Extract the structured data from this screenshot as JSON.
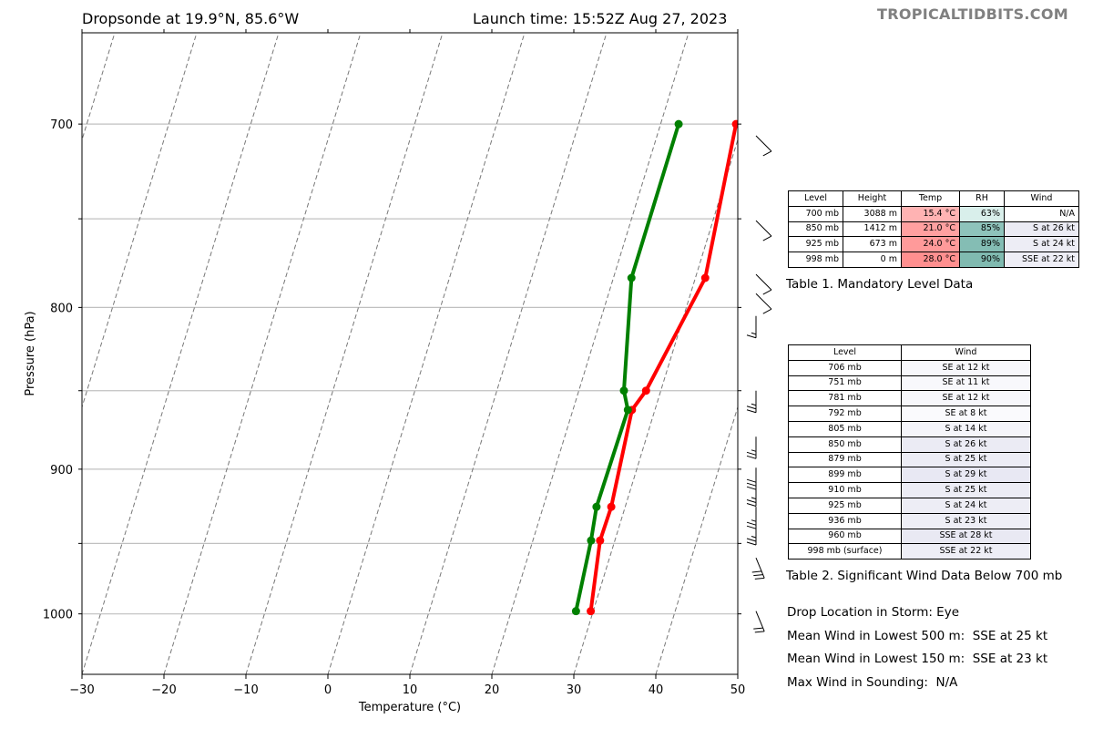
{
  "header": {
    "title_left": "Dropsonde at 19.9°N, 85.6°W",
    "title_right": "Launch time: 15:52Z Aug 27, 2023",
    "watermark": "TROPICALTIDBITS.COM"
  },
  "chart_data": {
    "type": "line",
    "xlabel": "Temperature (°C)",
    "ylabel": "Pressure (hPa)",
    "xlim": [
      -30,
      50
    ],
    "x_ticks": [
      "−30",
      "−20",
      "−10",
      "0",
      "10",
      "20",
      "30",
      "40",
      "50"
    ],
    "x_tick_values": [
      -30,
      -20,
      -10,
      0,
      10,
      20,
      30,
      40,
      50
    ],
    "ylim": [
      1045,
      655
    ],
    "y_scale": "log",
    "y_ticks": [
      "700",
      "800",
      "900",
      "1000"
    ],
    "y_tick_values": [
      700,
      800,
      900,
      1000
    ],
    "gridlines_hpa": [
      700,
      750,
      800,
      850,
      900,
      950,
      1000
    ],
    "skew_isotherms": true,
    "series": [
      {
        "color": "#ff0000",
        "points": [
          {
            "p": 700,
            "t": 29.2
          },
          {
            "p": 783,
            "t": 31.2
          },
          {
            "p": 850,
            "t": 28.2
          },
          {
            "p": 862,
            "t": 27.2
          },
          {
            "p": 925,
            "t": 28.3
          },
          {
            "p": 948,
            "t": 28.2
          },
          {
            "p": 998,
            "t": 29.7
          }
        ]
      },
      {
        "color": "#008000",
        "points": [
          {
            "p": 700,
            "t": 22.2
          },
          {
            "p": 783,
            "t": 22.2
          },
          {
            "p": 850,
            "t": 25.5
          },
          {
            "p": 862,
            "t": 26.7
          },
          {
            "p": 925,
            "t": 26.5
          },
          {
            "p": 948,
            "t": 27.1
          },
          {
            "p": 998,
            "t": 27.9
          }
        ]
      }
    ],
    "wind_barbs": [
      {
        "p": 706,
        "dir": "SE",
        "kt": 12
      },
      {
        "p": 751,
        "dir": "SE",
        "kt": 11
      },
      {
        "p": 781,
        "dir": "SE",
        "kt": 12
      },
      {
        "p": 792,
        "dir": "SE",
        "kt": 8
      },
      {
        "p": 805,
        "dir": "S",
        "kt": 14
      },
      {
        "p": 850,
        "dir": "S",
        "kt": 26
      },
      {
        "p": 879,
        "dir": "S",
        "kt": 25
      },
      {
        "p": 899,
        "dir": "S",
        "kt": 29
      },
      {
        "p": 910,
        "dir": "S",
        "kt": 25
      },
      {
        "p": 925,
        "dir": "S",
        "kt": 24
      },
      {
        "p": 936,
        "dir": "S",
        "kt": 23
      },
      {
        "p": 960,
        "dir": "SSE",
        "kt": 28
      },
      {
        "p": 998,
        "dir": "SSE",
        "kt": 22
      }
    ]
  },
  "table1": {
    "headers": [
      "Level",
      "Height",
      "Temp",
      "RH",
      "Wind"
    ],
    "rows": [
      {
        "level": "700 mb",
        "height": "3088 m",
        "temp": "15.4 °C",
        "rh": "63%",
        "wind": "N/A",
        "temp_color": "#ffb3b3",
        "rh_color": "#d9efeb",
        "wind_color": "#ffffff"
      },
      {
        "level": "850 mb",
        "height": "1412 m",
        "temp": "21.0 °C",
        "rh": "85%",
        "wind": "S at 26 kt",
        "temp_color": "#ffa0a0",
        "rh_color": "#8ec3bb",
        "wind_color": "#ebebf4"
      },
      {
        "level": "925 mb",
        "height": "673 m",
        "temp": "24.0 °C",
        "rh": "89%",
        "wind": "S at 24 kt",
        "temp_color": "#ff9a9a",
        "rh_color": "#84bdb4",
        "wind_color": "#ededf5"
      },
      {
        "level": "998 mb",
        "height": "0 m",
        "temp": "28.0 °C",
        "rh": "90%",
        "wind": "SSE at 22 kt",
        "temp_color": "#ff8f8f",
        "rh_color": "#80bab0",
        "wind_color": "#eeeef6"
      }
    ],
    "caption": "Table 1. Mandatory Level Data"
  },
  "table2": {
    "headers": [
      "Level",
      "Wind"
    ],
    "rows": [
      {
        "level": "706 mb",
        "wind": "SE at 12 kt",
        "wind_color": "#f7f7fb"
      },
      {
        "level": "751 mb",
        "wind": "SE at 11 kt",
        "wind_color": "#f8f8fc"
      },
      {
        "level": "781 mb",
        "wind": "SE at 12 kt",
        "wind_color": "#f7f7fb"
      },
      {
        "level": "792 mb",
        "wind": "SE at 8 kt",
        "wind_color": "#fafafd"
      },
      {
        "level": "805 mb",
        "wind": "S at 14 kt",
        "wind_color": "#f5f5fa"
      },
      {
        "level": "850 mb",
        "wind": "S at 26 kt",
        "wind_color": "#ebebf4"
      },
      {
        "level": "879 mb",
        "wind": "S at 25 kt",
        "wind_color": "#ececf5"
      },
      {
        "level": "899 mb",
        "wind": "S at 29 kt",
        "wind_color": "#e8e8f3"
      },
      {
        "level": "910 mb",
        "wind": "S at 25 kt",
        "wind_color": "#ececf5"
      },
      {
        "level": "925 mb",
        "wind": "S at 24 kt",
        "wind_color": "#ededf5"
      },
      {
        "level": "936 mb",
        "wind": "S at 23 kt",
        "wind_color": "#eeeef6"
      },
      {
        "level": "960 mb",
        "wind": "SSE at 28 kt",
        "wind_color": "#e9e9f3"
      },
      {
        "level": "998 mb (surface)",
        "wind": "SSE at 22 kt",
        "wind_color": "#eeeef6"
      }
    ],
    "caption": "Table 2. Significant Wind Data Below 700 mb"
  },
  "info": {
    "drop_location": "Drop Location in Storm: Eye",
    "mean_wind_500": "Mean Wind in Lowest 500 m:  SSE at 25 kt",
    "mean_wind_150": "Mean Wind in Lowest 150 m:  SSE at 23 kt",
    "max_wind": "Max Wind in Sounding:  N/A"
  }
}
